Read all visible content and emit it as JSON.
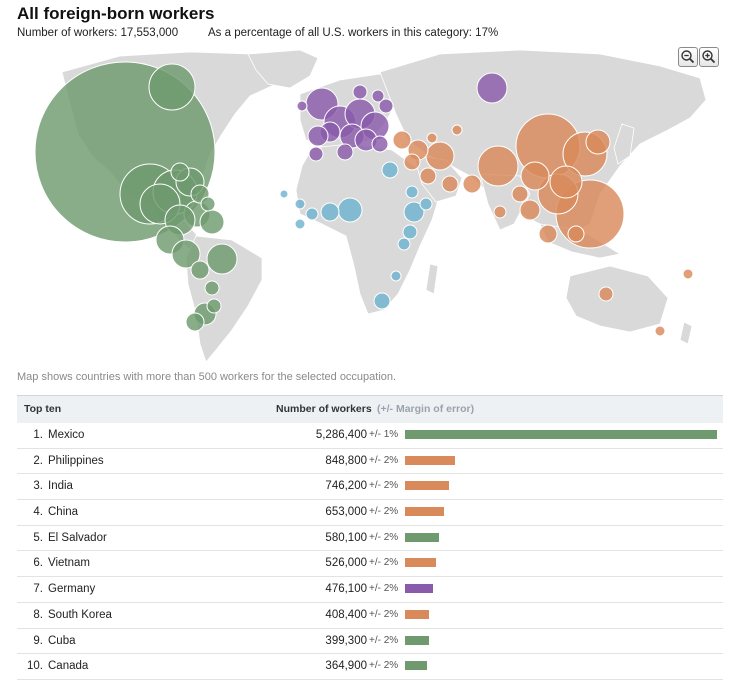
{
  "title": "All foreign-born workers",
  "summary": {
    "workers": "Number of workers: 17,553,000",
    "percentage": "As a percentage of all U.S. workers in this category: 17%"
  },
  "controls": {
    "zoom_out": "zoom-out",
    "zoom_in": "zoom-in"
  },
  "colors": {
    "americas": "#6f9a6f",
    "asia": "#d98a5a",
    "europe": "#8a5bab",
    "africa": "#6fb5cf",
    "land": "#d9d9d9",
    "bar_bg": "#eef1f4"
  },
  "note": "Map shows countries with more than 500 workers for the selected occupation.",
  "table": {
    "header_rank": "Top ten",
    "header_value": "Number of workers",
    "header_moe": "(+/- Margin of error)",
    "rows": [
      {
        "rank": "1.",
        "name": "Mexico",
        "value": "5,286,400",
        "moe": "+/- 1%",
        "share": 1.0,
        "region": "americas"
      },
      {
        "rank": "2.",
        "name": "Philippines",
        "value": "848,800",
        "moe": "+/- 2%",
        "share": 0.16,
        "region": "asia"
      },
      {
        "rank": "3.",
        "name": "India",
        "value": "746,200",
        "moe": "+/- 2%",
        "share": 0.141,
        "region": "asia"
      },
      {
        "rank": "4.",
        "name": "China",
        "value": "653,000",
        "moe": "+/- 2%",
        "share": 0.124,
        "region": "asia"
      },
      {
        "rank": "5.",
        "name": "El Salvador",
        "value": "580,100",
        "moe": "+/- 2%",
        "share": 0.11,
        "region": "americas"
      },
      {
        "rank": "6.",
        "name": "Vietnam",
        "value": "526,000",
        "moe": "+/- 2%",
        "share": 0.1,
        "region": "asia"
      },
      {
        "rank": "7.",
        "name": "Germany",
        "value": "476,100",
        "moe": "+/- 2%",
        "share": 0.09,
        "region": "europe"
      },
      {
        "rank": "8.",
        "name": "South Korea",
        "value": "408,400",
        "moe": "+/- 2%",
        "share": 0.077,
        "region": "asia"
      },
      {
        "rank": "9.",
        "name": "Cuba",
        "value": "399,300",
        "moe": "+/- 2%",
        "share": 0.076,
        "region": "americas"
      },
      {
        "rank": "10.",
        "name": "Canada",
        "value": "364,900",
        "moe": "+/- 2%",
        "share": 0.069,
        "region": "americas"
      }
    ]
  }
}
